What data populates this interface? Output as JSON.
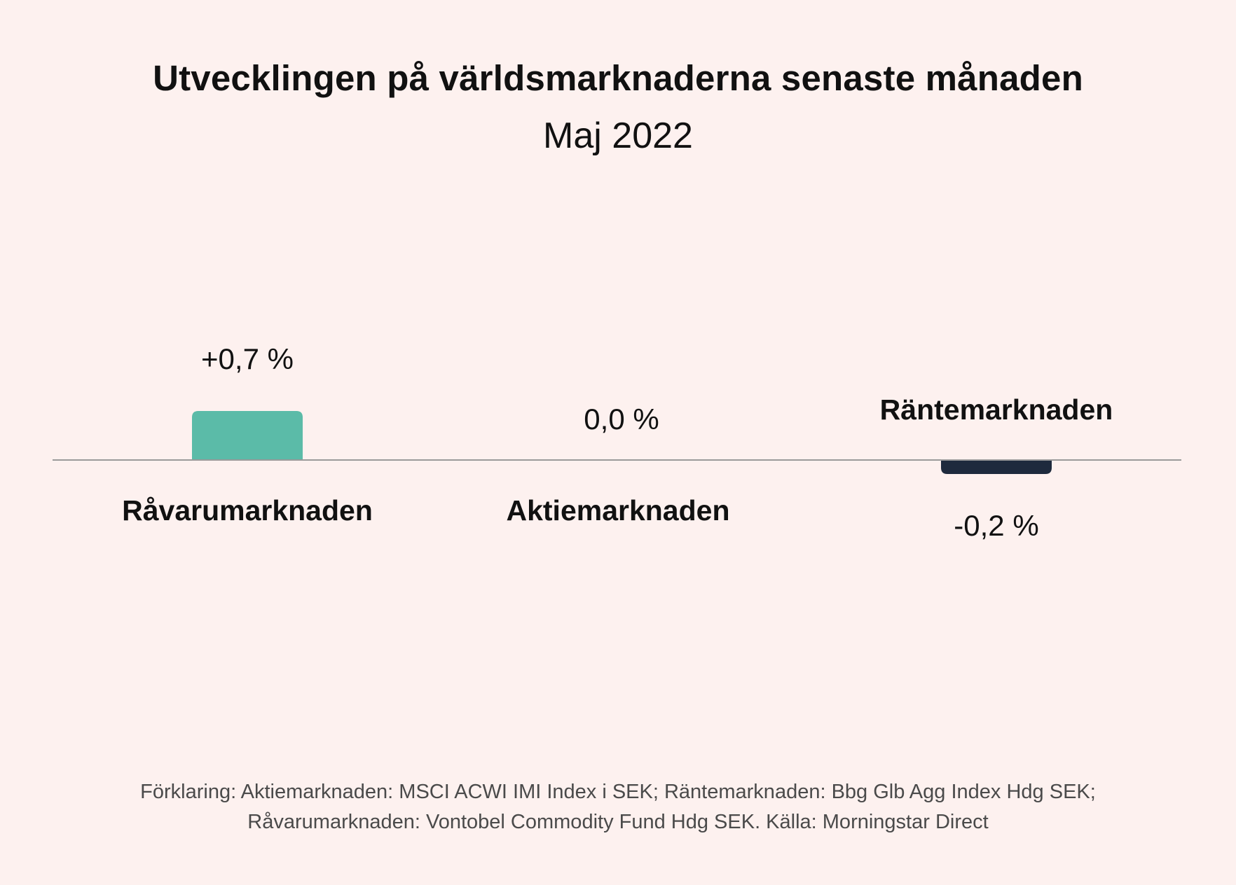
{
  "title": "Utvecklingen på världsmarknaderna senaste månaden",
  "subtitle": "Maj 2022",
  "chart_data": {
    "type": "bar",
    "categories": [
      "Råvarumarknaden",
      "Aktiemarknaden",
      "Räntemarknaden"
    ],
    "values": [
      0.7,
      0.0,
      -0.2
    ],
    "value_labels": [
      "+0,7 %",
      "0,0 %",
      "-0,2 %"
    ],
    "colors": [
      "#5bbba8",
      "#5bbba8",
      "#1e2a3d"
    ],
    "ylim": [
      -0.5,
      1.0
    ],
    "grid": false,
    "legend": "none",
    "xlabel": "",
    "ylabel": ""
  },
  "footnote": "Förklaring: Aktiemarknaden: MSCI ACWI IMI Index i SEK; Räntemarknaden: Bbg Glb Agg Index Hdg SEK; Råvarumarknaden: Vontobel Commodity Fund Hdg SEK. Källa: Morningstar Direct",
  "colors": {
    "background": "#fdf1ef",
    "axis": "#9a9a9a",
    "text": "#111111",
    "footnote": "#4a4a4a"
  }
}
